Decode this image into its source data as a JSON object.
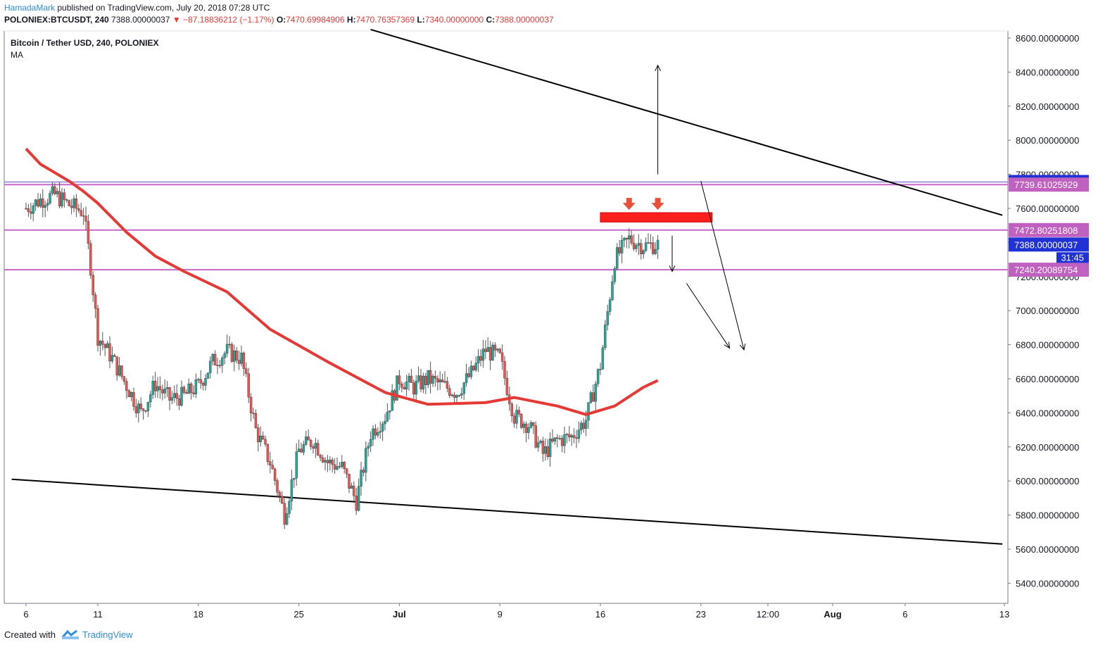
{
  "header": {
    "author": "HamadaMark",
    "published": "published on TradingView.com, July 20, 2018 07:28 UTC",
    "symbol": "POLONIEX:BTCUSDT, 240",
    "last": "7388.00000037",
    "change": "▼ −87.18836212 (−1.17%)",
    "o_label": "O:",
    "o_value": "7470.69984906",
    "h_label": "H:",
    "h_value": "7470.76357369",
    "l_label": "L:",
    "l_value": "7340.00000000",
    "c_label": "C:",
    "c_value": "7388.00000037"
  },
  "legend": {
    "title": "Bitcoin / Tether USD, 240, POLONIEX",
    "indicator": "MA"
  },
  "footer": {
    "created_with": "Created with",
    "brand": "TradingView"
  },
  "colors": {
    "up": "#26a69a",
    "down": "#ef5350",
    "ma": "#e53935",
    "hline": "#c767c7",
    "hline_top": "#8b7fd4",
    "tag_pink": "#c060c0",
    "tag_blue": "#1f32d6",
    "zone": "#ff1f1f",
    "marker": "#e8503a"
  },
  "chart_data": {
    "type": "candlestick",
    "title": "Bitcoin / Tether USD, 240, POLONIEX",
    "ylim": [
      5200,
      8650
    ],
    "y_ticks": [
      "8600.00000000",
      "8400.00000000",
      "8200.00000000",
      "8000.00000000",
      "7800.00000000",
      "7600.00000000",
      "7400.00000000",
      "7200.00000000",
      "7000.00000000",
      "6800.00000000",
      "6600.00000000",
      "6400.00000000",
      "6200.00000000",
      "6000.00000000",
      "5800.00000000",
      "5600.00000000",
      "5400.00000000"
    ],
    "y_tick_values": [
      8600,
      8400,
      8200,
      8000,
      7800,
      7600,
      7400,
      7200,
      7000,
      6800,
      6600,
      6400,
      6200,
      6000,
      5800,
      5600,
      5400
    ],
    "x_ticks": [
      "6",
      "11",
      "18",
      "25",
      "Jul",
      "9",
      "16",
      "23",
      "12:00",
      "Aug",
      "6",
      "13"
    ],
    "x_ticks_bold": [
      "Jul",
      "Aug"
    ],
    "close_path": [
      [
        "2018-06-06",
        7600
      ],
      [
        "2018-06-07",
        7650
      ],
      [
        "2018-06-08",
        7680
      ],
      [
        "2018-06-09",
        7620
      ],
      [
        "2018-06-10",
        7580
      ],
      [
        "2018-06-10T12:00",
        7260
      ],
      [
        "2018-06-11",
        6850
      ],
      [
        "2018-06-12",
        6720
      ],
      [
        "2018-06-13",
        6560
      ],
      [
        "2018-06-14",
        6400
      ],
      [
        "2018-06-15",
        6570
      ],
      [
        "2018-06-16",
        6480
      ],
      [
        "2018-06-17",
        6500
      ],
      [
        "2018-06-18",
        6560
      ],
      [
        "2018-06-19",
        6700
      ],
      [
        "2018-06-20",
        6760
      ],
      [
        "2018-06-21",
        6720
      ],
      [
        "2018-06-22",
        6300
      ],
      [
        "2018-06-23",
        6110
      ],
      [
        "2018-06-24",
        5800
      ],
      [
        "2018-06-25",
        6180
      ],
      [
        "2018-06-26",
        6240
      ],
      [
        "2018-06-27",
        6110
      ],
      [
        "2018-06-28",
        6080
      ],
      [
        "2018-06-29",
        5880
      ],
      [
        "2018-06-30",
        6280
      ],
      [
        "2018-07-01",
        6380
      ],
      [
        "2018-07-02",
        6600
      ],
      [
        "2018-07-03",
        6550
      ],
      [
        "2018-07-04",
        6600
      ],
      [
        "2018-07-05",
        6560
      ],
      [
        "2018-07-06",
        6520
      ],
      [
        "2018-07-07",
        6630
      ],
      [
        "2018-07-08",
        6770
      ],
      [
        "2018-07-09",
        6720
      ],
      [
        "2018-07-10",
        6380
      ],
      [
        "2018-07-11",
        6330
      ],
      [
        "2018-07-12",
        6160
      ],
      [
        "2018-07-13",
        6240
      ],
      [
        "2018-07-14",
        6260
      ],
      [
        "2018-07-15",
        6360
      ],
      [
        "2018-07-16",
        6680
      ],
      [
        "2018-07-17",
        7300
      ],
      [
        "2018-07-18",
        7420
      ],
      [
        "2018-07-19",
        7380
      ],
      [
        "2018-07-20",
        7388
      ]
    ],
    "ma_path": [
      [
        "2018-06-06",
        7950
      ],
      [
        "2018-06-07",
        7860
      ],
      [
        "2018-06-08",
        7810
      ],
      [
        "2018-06-09",
        7760
      ],
      [
        "2018-06-10",
        7700
      ],
      [
        "2018-06-11",
        7630
      ],
      [
        "2018-06-13",
        7460
      ],
      [
        "2018-06-15",
        7320
      ],
      [
        "2018-06-17",
        7230
      ],
      [
        "2018-06-20",
        7110
      ],
      [
        "2018-06-23",
        6890
      ],
      [
        "2018-06-27",
        6700
      ],
      [
        "2018-07-01",
        6520
      ],
      [
        "2018-07-04",
        6450
      ],
      [
        "2018-07-08",
        6460
      ],
      [
        "2018-07-10",
        6490
      ],
      [
        "2018-07-13",
        6440
      ],
      [
        "2018-07-15",
        6390
      ],
      [
        "2018-07-17",
        6440
      ],
      [
        "2018-07-19",
        6550
      ],
      [
        "2018-07-20",
        6590
      ]
    ],
    "trendlines": [
      {
        "from": [
          "2018-06-30",
          8650
        ],
        "to": [
          "2018-08-13",
          7560
        ]
      },
      {
        "from": [
          "2018-06-05",
          6010
        ],
        "to": [
          "2018-08-13",
          5630
        ]
      }
    ],
    "horizontal_levels": [
      {
        "price": 7739.61025929,
        "label": "7739.61025929",
        "color": "pink"
      },
      {
        "price": 7472.80251808,
        "label": "7472.80251808",
        "color": "pink"
      },
      {
        "price": 7240.20089754,
        "label": "7240.20089754",
        "color": "pink"
      }
    ],
    "top_line": 7755,
    "resistance_zone": {
      "from": "2018-07-16",
      "to": "2018-07-23",
      "low": 7520,
      "high": 7575
    },
    "markers": [
      [
        "2018-07-18",
        7620
      ],
      [
        "2018-07-20",
        7620
      ]
    ],
    "arrows": [
      {
        "from": [
          "2018-07-20",
          7800
        ],
        "to": [
          "2018-07-20",
          8440
        ]
      },
      {
        "from": [
          "2018-07-21",
          7440
        ],
        "to": [
          "2018-07-21",
          7230
        ]
      },
      {
        "from": [
          "2018-07-23",
          7760
        ],
        "to": [
          "2018-07-26",
          6770
        ]
      },
      {
        "from": [
          "2018-07-22",
          7160
        ],
        "to": [
          "2018-07-25",
          6780
        ]
      }
    ],
    "current_price_tag": {
      "label": "7388.00000037"
    },
    "countdown": "31:45"
  }
}
